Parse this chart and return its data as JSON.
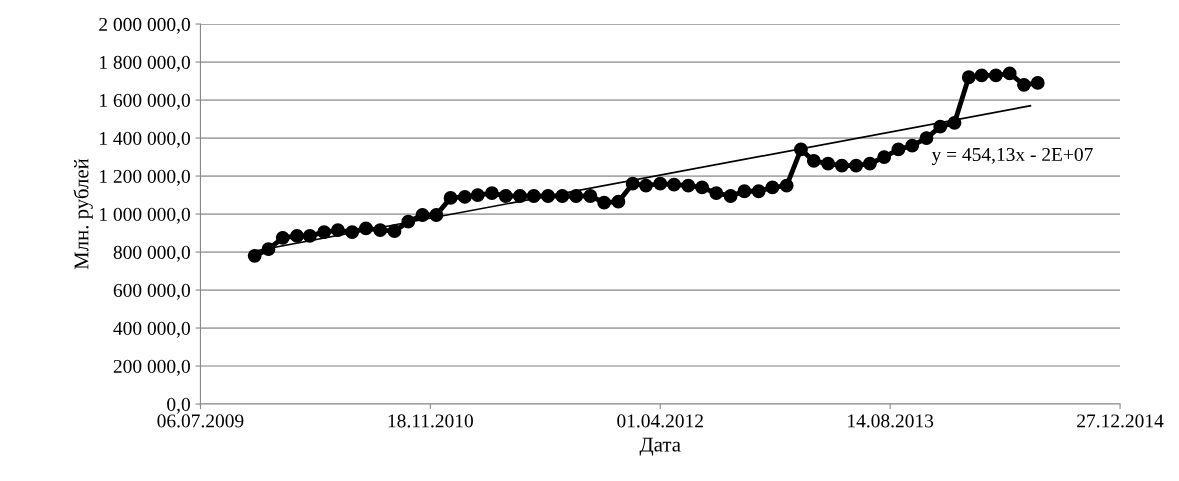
{
  "chart_data": {
    "type": "line",
    "xlabel": "Дата",
    "ylabel": "Млн. рублей",
    "x": [
      "2009-11-01",
      "2009-12-01",
      "2010-01-01",
      "2010-02-01",
      "2010-03-01",
      "2010-04-01",
      "2010-05-01",
      "2010-06-01",
      "2010-07-01",
      "2010-08-01",
      "2010-09-01",
      "2010-10-01",
      "2010-11-01",
      "2010-12-01",
      "2011-01-01",
      "2011-02-01",
      "2011-03-01",
      "2011-04-01",
      "2011-05-01",
      "2011-06-01",
      "2011-07-01",
      "2011-08-01",
      "2011-09-01",
      "2011-10-01",
      "2011-11-01",
      "2011-12-01",
      "2012-01-01",
      "2012-02-01",
      "2012-03-01",
      "2012-04-01",
      "2012-05-01",
      "2012-06-01",
      "2012-07-01",
      "2012-08-01",
      "2012-09-01",
      "2012-10-01",
      "2012-11-01",
      "2012-12-01",
      "2013-01-01",
      "2013-02-01",
      "2013-03-01",
      "2013-04-01",
      "2013-05-01",
      "2013-06-01",
      "2013-07-01",
      "2013-08-01",
      "2013-09-01",
      "2013-10-01",
      "2013-11-01",
      "2013-12-01",
      "2014-01-01",
      "2014-02-01",
      "2014-03-01",
      "2014-04-01",
      "2014-05-01",
      "2014-06-01",
      "2014-07-01"
    ],
    "series": [
      {
        "color": "#000000",
        "marker": "circle",
        "values": [
          780000,
          815000,
          875000,
          885000,
          885000,
          905000,
          915000,
          905000,
          925000,
          915000,
          910000,
          960000,
          995000,
          995000,
          1085000,
          1090000,
          1100000,
          1110000,
          1095000,
          1095000,
          1095000,
          1095000,
          1095000,
          1095000,
          1095000,
          1060000,
          1065000,
          1160000,
          1150000,
          1160000,
          1155000,
          1150000,
          1140000,
          1110000,
          1095000,
          1120000,
          1120000,
          1140000,
          1150000,
          1340000,
          1280000,
          1265000,
          1255000,
          1255000,
          1265000,
          1300000,
          1340000,
          1360000,
          1400000,
          1460000,
          1480000,
          1720000,
          1730000,
          1730000,
          1740000,
          1680000,
          1690000
        ]
      },
      {
        "type": "line",
        "color": "#000000",
        "marker": "none",
        "x": [
          "2009-11-01",
          "2014-06-15"
        ],
        "values": [
          805000,
          1570000
        ]
      }
    ],
    "annotations": [
      "y = 454,13x - 2E+07"
    ],
    "xlim": [
      "2009-07-06",
      "2014-12-27"
    ],
    "xticks": [
      {
        "value": "2009-07-06",
        "label": "06.07.2009"
      },
      {
        "value": "2010-11-18",
        "label": "18.11.2010"
      },
      {
        "value": "2012-04-01",
        "label": "01.04.2012"
      },
      {
        "value": "2013-08-14",
        "label": "14.08.2013"
      },
      {
        "value": "2014-12-27",
        "label": "27.12.2014"
      }
    ],
    "ylim": [
      0,
      2000000
    ],
    "yticks": [
      {
        "value": 0,
        "label": "0,0"
      },
      {
        "value": 200000,
        "label": "200 000,0"
      },
      {
        "value": 400000,
        "label": "400 000,0"
      },
      {
        "value": 600000,
        "label": "600 000,0"
      },
      {
        "value": 800000,
        "label": "800 000,0"
      },
      {
        "value": 1000000,
        "label": "1 000 000,0"
      },
      {
        "value": 1200000,
        "label": "1 200 000,0"
      },
      {
        "value": 1400000,
        "label": "1 400 000,0"
      },
      {
        "value": 1600000,
        "label": "1 600 000,0"
      },
      {
        "value": 1800000,
        "label": "1 800 000,0"
      },
      {
        "value": 2000000,
        "label": "2 000 000,0"
      }
    ],
    "grid": "y"
  }
}
